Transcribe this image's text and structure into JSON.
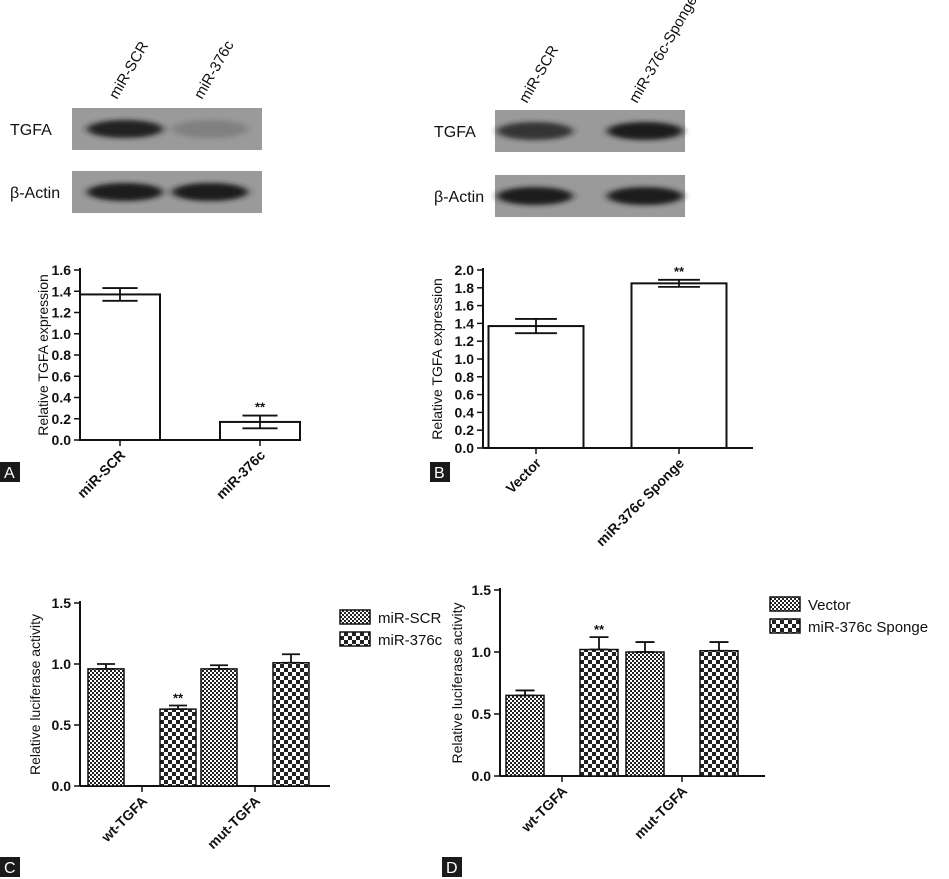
{
  "colors": {
    "axis": "#111111",
    "bar_fill": "#ffffff",
    "blot_bg": "#9a9a9a",
    "band": "#1c1c1c",
    "panel_label_bg": "#1a1a1a"
  },
  "panels": [
    {
      "letter": "A",
      "blot": {
        "lanes": [
          "miR-SCR",
          "miR-376c"
        ],
        "rows": [
          {
            "label": "TGFA",
            "intensity": [
              0.95,
              0.2
            ]
          },
          {
            "label": "β-Actin",
            "intensity": [
              1.0,
              1.0
            ]
          }
        ]
      },
      "chart_data": {
        "type": "bar",
        "categories": [
          "miR-SCR",
          "miR-376c"
        ],
        "values": [
          1.37,
          0.17
        ],
        "errors": [
          0.06,
          0.06
        ],
        "annotations": [
          "",
          "**"
        ],
        "ylabel": "Relative TGFA  expression",
        "ylim": [
          0,
          1.6
        ],
        "yticks": [
          "0.0",
          "0.2",
          "0.4",
          "0.6",
          "0.8",
          "1.0",
          "1.2",
          "1.4",
          "1.6"
        ],
        "grid": false
      }
    },
    {
      "letter": "B",
      "blot": {
        "lanes": [
          "miR-SCR",
          "miR-376c-Sponge"
        ],
        "rows": [
          {
            "label": "TGFA",
            "intensity": [
              0.8,
              1.0
            ]
          },
          {
            "label": "β-Actin",
            "intensity": [
              1.0,
              1.0
            ]
          }
        ]
      },
      "chart_data": {
        "type": "bar",
        "categories": [
          "Vector",
          "miR-376c Sponge"
        ],
        "values": [
          1.37,
          1.85
        ],
        "errors": [
          0.08,
          0.04
        ],
        "annotations": [
          "",
          "**"
        ],
        "ylabel": "Relative TGFA  expression",
        "ylim": [
          0,
          2.0
        ],
        "yticks": [
          "0.0",
          "0.2",
          "0.4",
          "0.6",
          "0.8",
          "1.0",
          "1.2",
          "1.4",
          "1.6",
          "1.8",
          "2.0"
        ],
        "grid": false
      }
    },
    {
      "letter": "C",
      "chart_data": {
        "type": "bar",
        "categories": [
          "wt-TGFA",
          "mut-TGFA"
        ],
        "series": [
          {
            "name": "miR-SCR",
            "values": [
              0.96,
              0.96
            ],
            "errors": [
              0.04,
              0.03
            ],
            "pattern": "dense"
          },
          {
            "name": "miR-376c",
            "values": [
              0.63,
              1.01
            ],
            "errors": [
              0.03,
              0.07
            ],
            "pattern": "checker"
          }
        ],
        "annotations": [
          [
            "",
            "**"
          ],
          [
            "",
            ""
          ]
        ],
        "ylabel": "Relative luciferase activity",
        "ylim": [
          0,
          1.5
        ],
        "yticks": [
          "0.0",
          "0.5",
          "1.0",
          "1.5"
        ],
        "legend": "top-right",
        "grid": false
      }
    },
    {
      "letter": "D",
      "chart_data": {
        "type": "bar",
        "categories": [
          "wt-TGFA",
          "mut-TGFA"
        ],
        "series": [
          {
            "name": "Vector",
            "values": [
              0.65,
              1.0
            ],
            "errors": [
              0.04,
              0.08
            ],
            "pattern": "dense"
          },
          {
            "name": "miR-376c Sponge",
            "values": [
              1.02,
              1.01
            ],
            "errors": [
              0.1,
              0.07
            ],
            "pattern": "checker"
          }
        ],
        "annotations": [
          [
            "",
            "**"
          ],
          [
            "",
            ""
          ]
        ],
        "ylabel": "Relative luciferase activity",
        "ylim": [
          0,
          1.5
        ],
        "yticks": [
          "0.0",
          "0.5",
          "1.0",
          "1.5"
        ],
        "legend": "top-right",
        "grid": false
      }
    }
  ]
}
